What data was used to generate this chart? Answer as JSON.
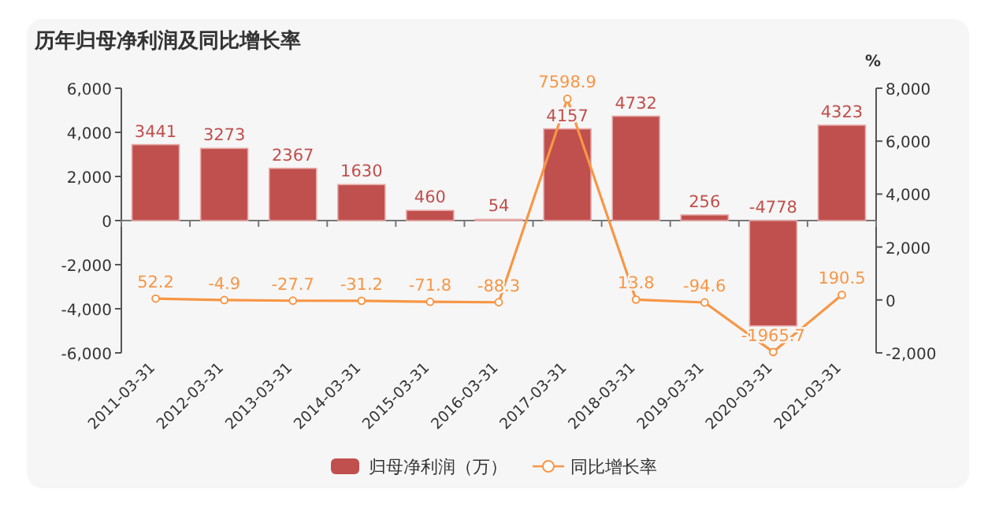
{
  "chart_data": {
    "type": "bar",
    "title": "历年归母净利润及同比增长率",
    "y2label": "%",
    "categories": [
      "2011-03-31",
      "2012-03-31",
      "2013-03-31",
      "2014-03-31",
      "2015-03-31",
      "2016-03-31",
      "2017-03-31",
      "2018-03-31",
      "2019-03-31",
      "2020-03-31",
      "2021-03-31"
    ],
    "series": [
      {
        "name": "归母净利润（万）",
        "color": "#c0504d",
        "values": [
          3441,
          3273,
          2367,
          1630,
          460,
          54,
          4157,
          4732,
          256,
          -4778,
          4323
        ]
      },
      {
        "name": "同比增长率",
        "type": "line",
        "axis": "y2",
        "color": "#f79646",
        "marker": "circle",
        "values": [
          52.2,
          -4.9,
          -27.7,
          -31.2,
          -71.8,
          -88.3,
          7598.9,
          13.8,
          -94.6,
          -1965.7,
          190.5
        ]
      }
    ],
    "ylim": [
      -6000,
      6000
    ],
    "yticks": [
      {
        "value": -6000,
        "label": "-6,000"
      },
      {
        "value": -4000,
        "label": "-4,000"
      },
      {
        "value": -2000,
        "label": "-2,000"
      },
      0,
      {
        "value": 2000,
        "label": "2,000"
      },
      {
        "value": 4000,
        "label": "4,000"
      },
      {
        "value": 6000,
        "label": "6,000"
      }
    ],
    "y2lim": [
      -2000,
      8000
    ],
    "y2ticks": [
      {
        "value": -2000,
        "label": "-2,000"
      },
      0,
      {
        "value": 2000,
        "label": "2,000"
      },
      {
        "value": 4000,
        "label": "4,000"
      },
      {
        "value": 6000,
        "label": "6,000"
      },
      {
        "value": 8000,
        "label": "8,000"
      }
    ],
    "data_labels": true,
    "legend": "bottom"
  }
}
